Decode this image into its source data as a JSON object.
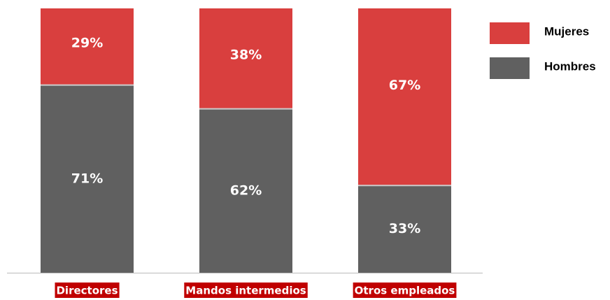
{
  "chart_data": {
    "type": "stacked_bar",
    "categories": [
      "Directores",
      "Mandos intermedios",
      "Otros empleados"
    ],
    "series": [
      {
        "name": "Mujeres",
        "color": "#d93f3e",
        "values": [
          29,
          38,
          67
        ],
        "value_labels": [
          "29%",
          "38%",
          "67%"
        ]
      },
      {
        "name": "Hombres",
        "color": "#606060",
        "values": [
          71,
          62,
          33
        ],
        "value_labels": [
          "71%",
          "62%",
          "33%"
        ]
      }
    ],
    "legend": "right"
  }
}
